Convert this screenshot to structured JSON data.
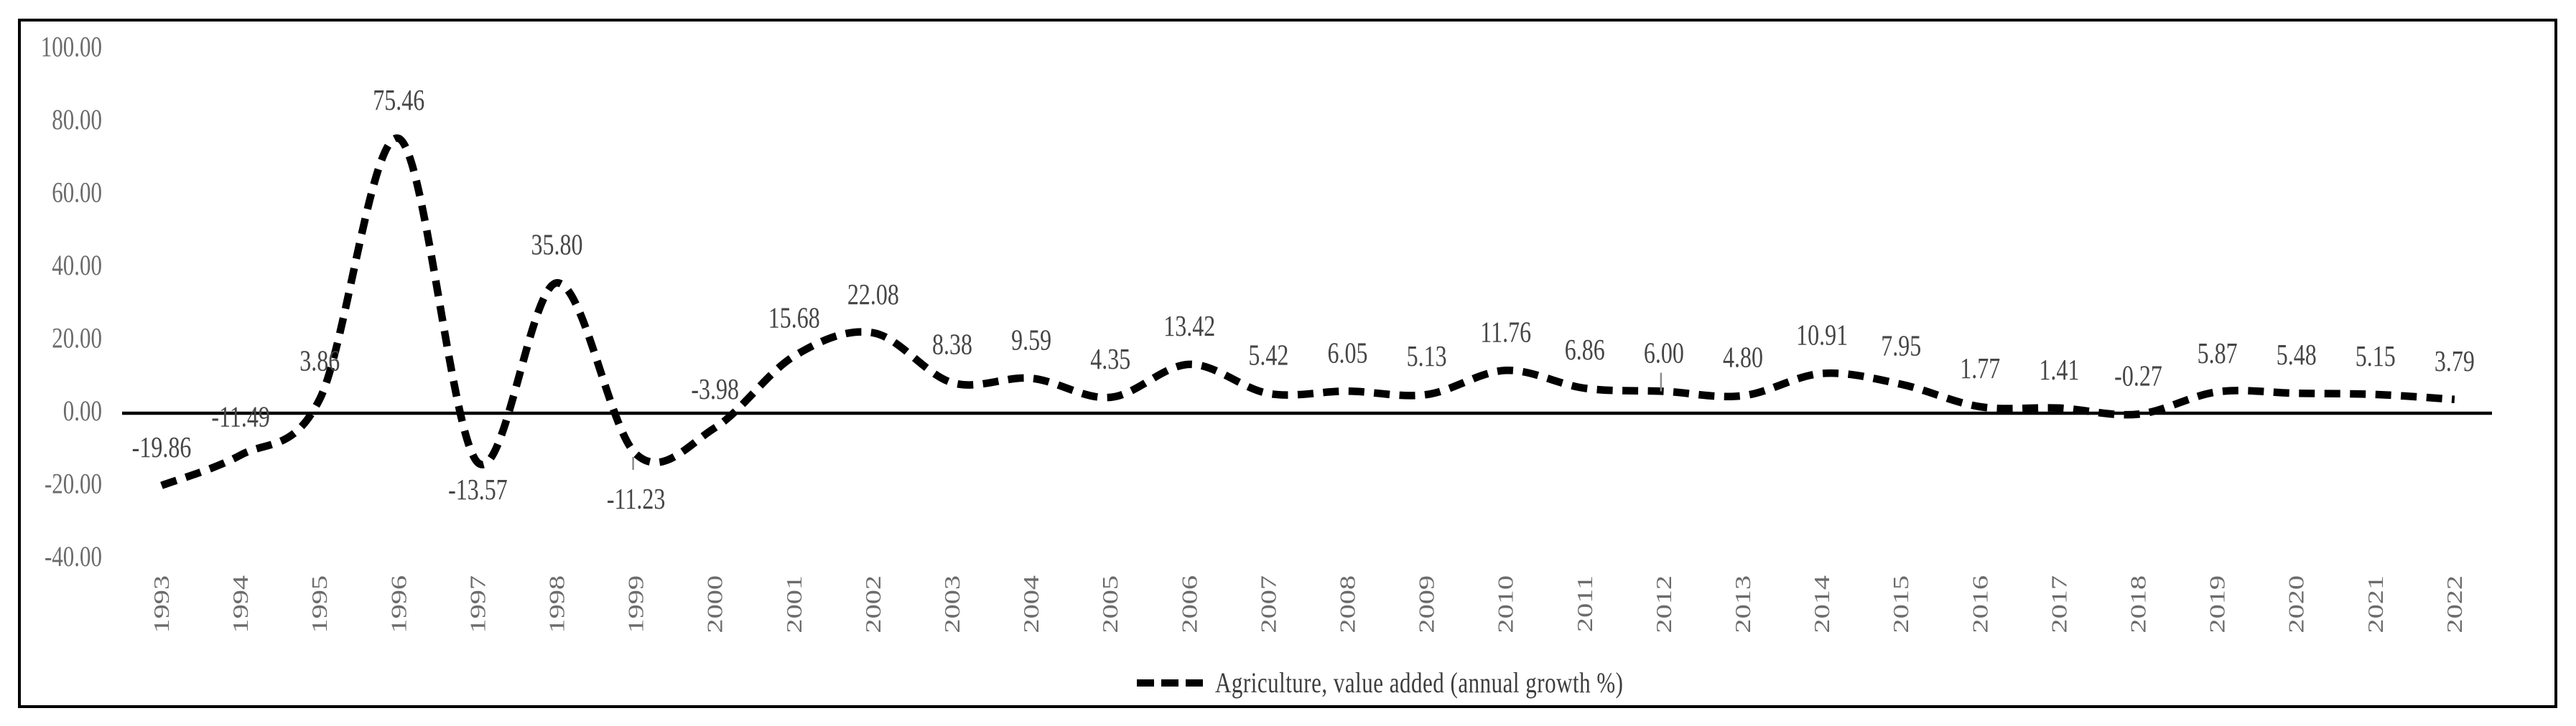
{
  "figure": {
    "background": "#ffffff",
    "border_color": "#000000"
  },
  "legend": {
    "label": "Agriculture, value added (annual growth %)"
  },
  "chart_data": {
    "type": "line",
    "title": "",
    "categories": [
      "1993",
      "1994",
      "1995",
      "1996",
      "1997",
      "1998",
      "1999",
      "2000",
      "2001",
      "2002",
      "2003",
      "2004",
      "2005",
      "2006",
      "2007",
      "2008",
      "2009",
      "2010",
      "2011",
      "2012",
      "2013",
      "2014",
      "2015",
      "2016",
      "2017",
      "2018",
      "2019",
      "2020",
      "2021",
      "2022"
    ],
    "series": [
      {
        "name": "Agriculture, value added (annual growth %)",
        "line_style": "dashed",
        "smoothed": true,
        "color": "#000000",
        "values": [
          -19.86,
          -11.49,
          3.86,
          75.46,
          -13.57,
          35.8,
          -11.23,
          -3.98,
          15.68,
          22.08,
          8.38,
          9.59,
          4.35,
          13.42,
          5.42,
          6.05,
          5.13,
          11.76,
          6.86,
          6.0,
          4.8,
          10.91,
          7.95,
          1.77,
          1.41,
          -0.27,
          5.87,
          5.48,
          5.15,
          3.79
        ]
      }
    ],
    "data_labels_visible": true,
    "y_ticks": [
      100,
      80,
      60,
      40,
      20,
      0,
      -20,
      -40
    ],
    "ylim": [
      -40,
      100
    ],
    "grid": false,
    "legend_position": "bottom-center",
    "labels_below_line": [
      "1997",
      "1999"
    ],
    "label_leader_years": [
      "1999",
      "2012"
    ],
    "axis_label_color": "#6b6b6b",
    "data_label_color": "#464646",
    "leader_line_color": "#8c8c8c",
    "zero_axis_color": "#000000"
  }
}
